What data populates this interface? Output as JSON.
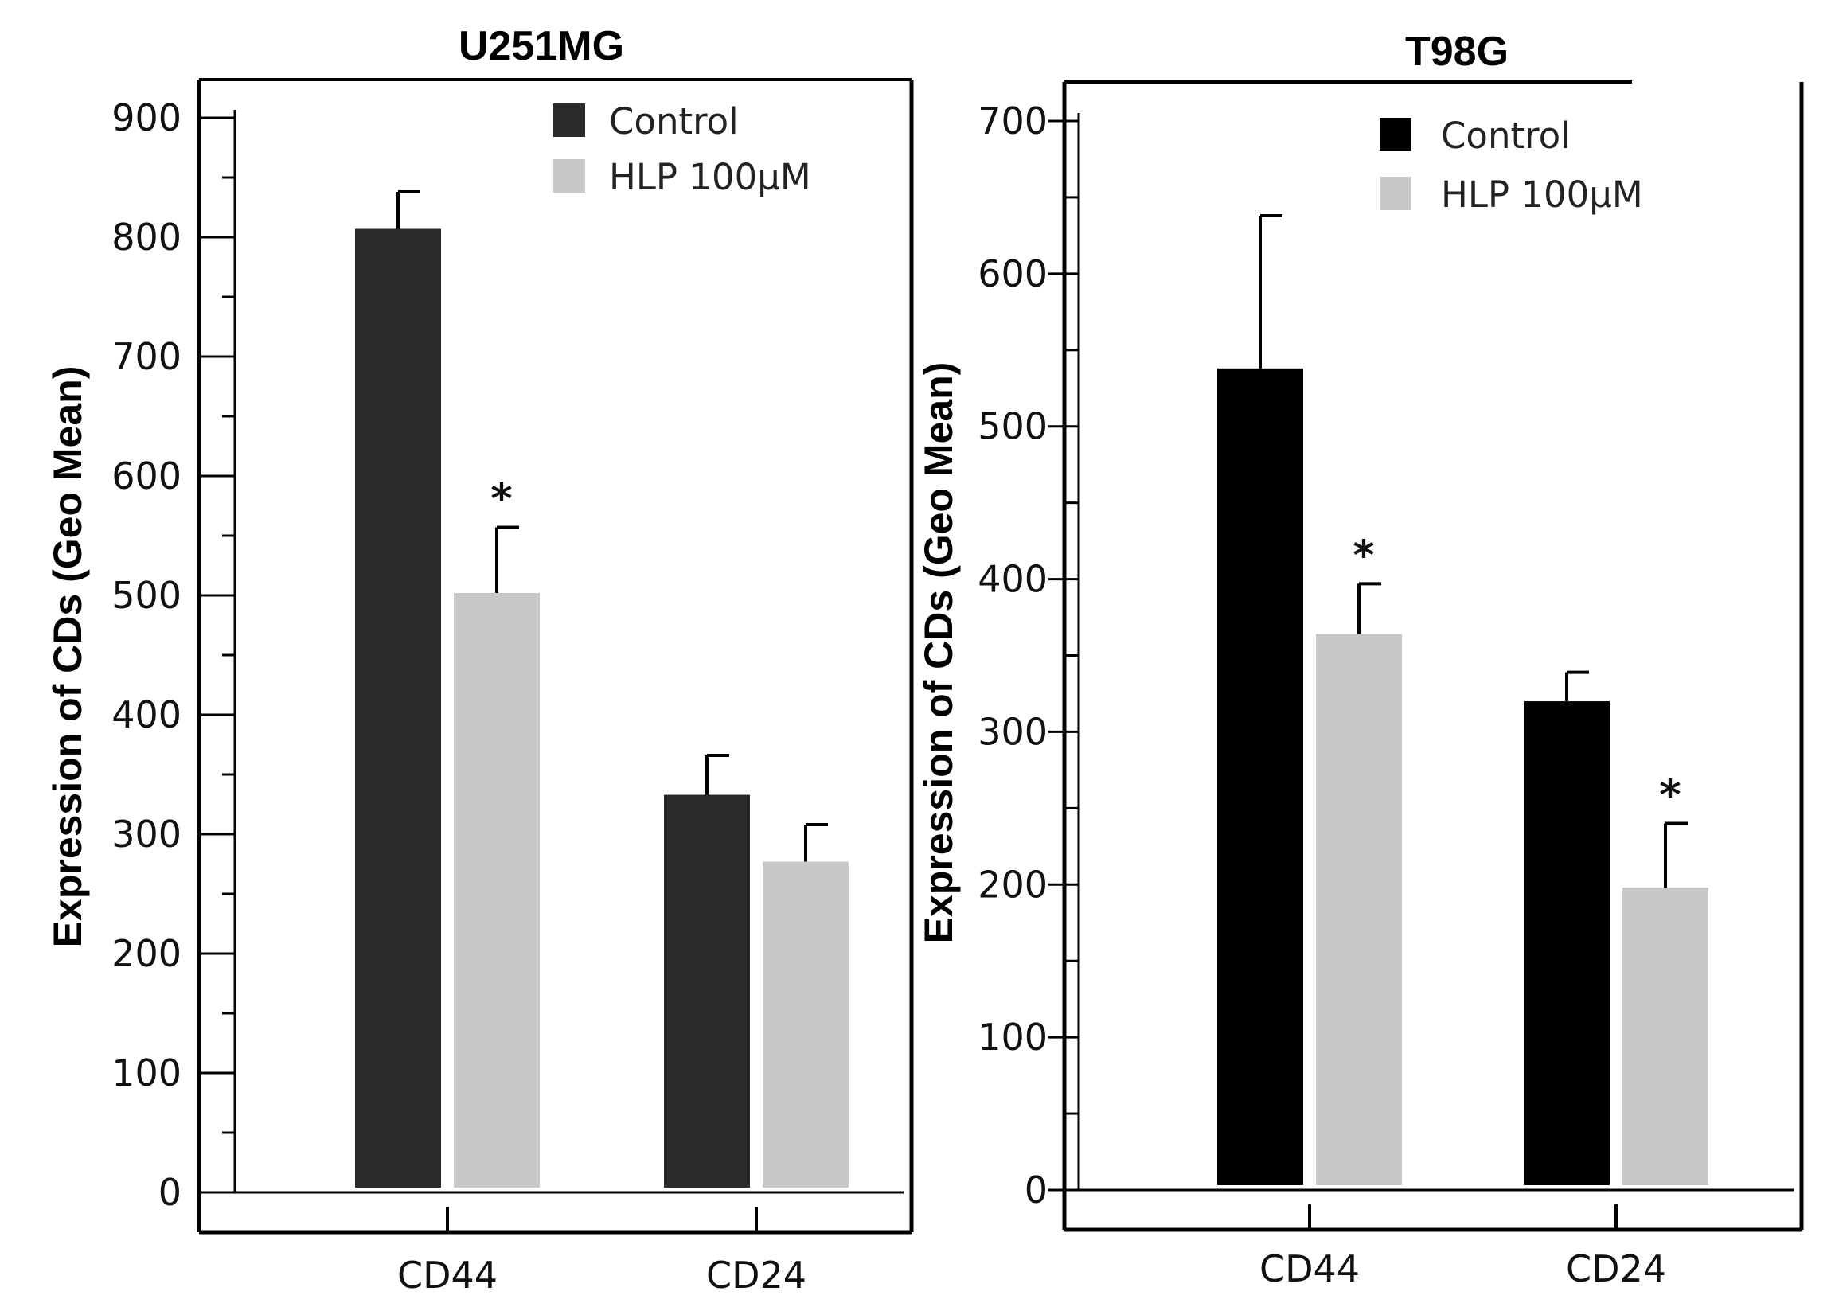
{
  "chart_data": [
    {
      "type": "bar",
      "title": "U251MG",
      "ylabel": "Expression of CDs (Geo Mean)",
      "xlabel": "",
      "ylim": [
        0,
        900
      ],
      "yticks": [
        0,
        100,
        200,
        300,
        400,
        500,
        600,
        700,
        800,
        900
      ],
      "categories": [
        "CD44",
        "CD24"
      ],
      "series": [
        {
          "name": "Control",
          "color": "#2b2b2b",
          "values": [
            807,
            333
          ],
          "errors": [
            31,
            33
          ]
        },
        {
          "name": "HLP 100μM",
          "color": "#c8c8c8",
          "values": [
            502,
            277
          ],
          "errors": [
            55,
            31
          ]
        }
      ],
      "annotations": [
        {
          "text": "*",
          "series": 1,
          "category": 0
        }
      ],
      "legend": "top-right",
      "grid": false
    },
    {
      "type": "bar",
      "title": "T98G",
      "ylabel": "Expression of CDs (Geo Mean)",
      "xlabel": "",
      "ylim": [
        0,
        700
      ],
      "yticks": [
        0,
        100,
        200,
        300,
        400,
        500,
        600,
        700
      ],
      "categories": [
        "CD44",
        "CD24"
      ],
      "series": [
        {
          "name": "Control",
          "color": "#000000",
          "values": [
            538,
            320
          ],
          "errors": [
            100,
            19
          ]
        },
        {
          "name": "HLP 100μM",
          "color": "#c8c8c8",
          "values": [
            364,
            198
          ],
          "errors": [
            33,
            42
          ]
        }
      ],
      "annotations": [
        {
          "text": "*",
          "series": 1,
          "category": 0
        },
        {
          "text": "*",
          "series": 1,
          "category": 1
        }
      ],
      "legend": "top-right",
      "grid": false
    }
  ]
}
